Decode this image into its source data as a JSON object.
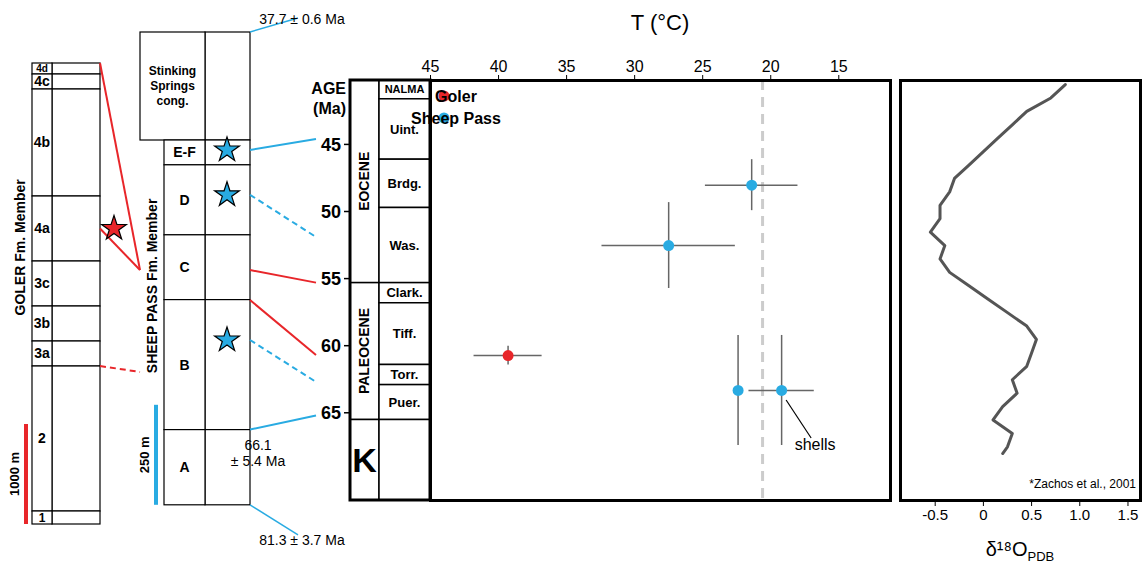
{
  "chart_data": [
    {
      "type": "scatter",
      "x_label": "T (°C)",
      "y_label": "AGE (Ma)",
      "xlim": [
        45,
        11.2
      ],
      "xticks": [
        45,
        40,
        35,
        30,
        25,
        20,
        15
      ],
      "ylim": [
        40.2,
        71.5
      ],
      "yticks": [
        45,
        50,
        55,
        60,
        65
      ],
      "legend": "top-left",
      "series": [
        {
          "name": "Goler",
          "color": "#e8262a",
          "x": [
            39.3
          ],
          "values": [
            60.7
          ],
          "x_err": [
            2.5
          ],
          "y_err": [
            0.7
          ]
        },
        {
          "name": "Sheep Pass",
          "color": "#29abe2",
          "x": [
            21.4,
            27.5,
            22.4,
            19.2
          ],
          "values": [
            48.0,
            52.5,
            63.3,
            63.3
          ],
          "x_err": [
            3.4,
            4.9,
            0,
            2.4
          ],
          "y_err": [
            1.9,
            3.2,
            4.1,
            4.1
          ]
        }
      ],
      "annotations": [
        {
          "text": "shells",
          "x": 19.2,
          "y": 63.3
        }
      ],
      "reference_lines": [
        {
          "x": 20.6,
          "color": "#cccccc",
          "line_style": "dashed"
        }
      ],
      "epochs": [
        {
          "label": "EOCENE",
          "from": 40.2,
          "to": 55.3
        },
        {
          "label": "PALEOCENE",
          "from": 55.3,
          "to": 65.5
        },
        {
          "label": "K",
          "from": 65.5,
          "to": 71.5
        }
      ],
      "nalma_header": "NALMA",
      "nalma": [
        {
          "label": "Uint.",
          "from": 41.6,
          "to": 46.1
        },
        {
          "label": "Brdg.",
          "from": 46.1,
          "to": 49.7
        },
        {
          "label": "Was.",
          "from": 49.7,
          "to": 55.3
        },
        {
          "label": "Clark.",
          "from": 55.3,
          "to": 56.8
        },
        {
          "label": "Tiff.",
          "from": 56.8,
          "to": 61.4
        },
        {
          "label": "Torr.",
          "from": 61.4,
          "to": 62.9
        },
        {
          "label": "Puer.",
          "from": 62.9,
          "to": 65.5
        }
      ]
    },
    {
      "type": "line",
      "x_label": "δ¹⁸O",
      "x_label_subscript": "PDB",
      "source": "*Zachos et al., 2001",
      "color": "#555555",
      "xlim": [
        -0.86,
        1.63
      ],
      "xticks": [
        -0.5,
        0,
        0.5,
        {
          "value": 1,
          "label": "1.0"
        },
        1.5
      ],
      "ylim": [
        40.2,
        71.5
      ],
      "x": [
        0.85,
        0.7,
        0.45,
        0.3,
        0.15,
        0.0,
        -0.15,
        -0.3,
        -0.35,
        -0.45,
        -0.45,
        -0.55,
        -0.4,
        -0.45,
        -0.35,
        -0.15,
        0.05,
        0.25,
        0.45,
        0.55,
        0.5,
        0.45,
        0.3,
        0.35,
        0.2,
        0.1,
        0.3,
        0.25,
        0.2
      ],
      "y": [
        40.5,
        41.5,
        42.5,
        43.5,
        44.5,
        45.5,
        46.5,
        47.5,
        48.5,
        49.5,
        50.5,
        51.5,
        52.5,
        53.5,
        54.5,
        55.5,
        56.5,
        57.5,
        58.5,
        59.5,
        60.5,
        61.5,
        62.5,
        63.5,
        64.5,
        65.5,
        66.5,
        67.5,
        68.0
      ]
    }
  ],
  "stratigraphy": {
    "columns": [
      {
        "name": "Goler",
        "title": "GOLER Fm. Member",
        "color": "#e8262a",
        "scale_bar": {
          "value": 1000,
          "label": "1000 m"
        },
        "units": [
          {
            "label": "4d",
            "thickness_m": 110
          },
          {
            "label": "4c",
            "thickness_m": 150
          },
          {
            "label": "4b",
            "thickness_m": 1070
          },
          {
            "label": "4a",
            "thickness_m": 650
          },
          {
            "label": "3c",
            "thickness_m": 450
          },
          {
            "label": "3b",
            "thickness_m": 350
          },
          {
            "label": "3a",
            "thickness_m": 250
          },
          {
            "label": "2",
            "thickness_m": 1450
          },
          {
            "label": "1",
            "thickness_m": 130
          }
        ]
      },
      {
        "name": "Sheep Pass",
        "title": "SHEEP PASS Fm. Member",
        "color": "#29abe2",
        "scale_bar": {
          "value": 250,
          "label": "250 m"
        },
        "overlying": {
          "label": "Stinking Springs cong.",
          "thickness_m": 270
        },
        "units": [
          {
            "label": "E-F",
            "thickness_m": 62
          },
          {
            "label": "D",
            "thickness_m": 175
          },
          {
            "label": "C",
            "thickness_m": 162
          },
          {
            "label": "B",
            "thickness_m": 325
          },
          {
            "label": "A",
            "thickness_m": 188
          }
        ]
      }
    ],
    "stars": [
      {
        "column": "Goler",
        "depth_m": 1655
      },
      {
        "column": "Sheep Pass",
        "depth_m": 295
      },
      {
        "column": "Sheep Pass",
        "depth_m": 407
      },
      {
        "column": "Sheep Pass",
        "depth_m": 770
      }
    ],
    "correlations": [
      {
        "from": {
          "column": "Goler",
          "depth_m": 0
        },
        "to": {
          "column": "Sheep Pass",
          "depth_m": 595
        },
        "color": "#e8262a",
        "line_style": "solid"
      },
      {
        "from": {
          "column": "Goler",
          "depth_m": 1655
        },
        "to": {
          "column": "Sheep Pass",
          "depth_m": 595
        },
        "color": "#e8262a",
        "line_style": "solid"
      },
      {
        "from": {
          "column": "Goler",
          "depth_m": 3030
        },
        "to": {
          "column": "Sheep Pass",
          "depth_m": 850
        },
        "color": "#e8262a",
        "line_style": "dashed"
      },
      {
        "from": {
          "column": "Sheep Pass",
          "depth_m": 595
        },
        "to": {
          "age": 55.3
        },
        "color": "#e8262a",
        "line_style": "solid"
      },
      {
        "from": {
          "column": "Sheep Pass",
          "depth_m": 670
        },
        "to": {
          "age": 60.7
        },
        "color": "#e8262a",
        "line_style": "solid"
      },
      {
        "from": {
          "column": "Sheep Pass",
          "depth_m": 295
        },
        "to": {
          "age": 44.6
        },
        "color": "#29abe2",
        "line_style": "solid"
      },
      {
        "from": {
          "column": "Sheep Pass",
          "depth_m": 407
        },
        "to": {
          "age": 51.9
        },
        "color": "#29abe2",
        "line_style": "dashed"
      },
      {
        "from": {
          "column": "Sheep Pass",
          "depth_m": 770
        },
        "to": {
          "age": 62.7
        },
        "color": "#29abe2",
        "line_style": "dashed"
      },
      {
        "from": {
          "column": "Sheep Pass",
          "depth_m": 994
        },
        "to": {
          "age": 65.2
        },
        "color": "#29abe2",
        "line_style": "solid"
      }
    ],
    "age_labels": [
      {
        "label": "37.7 ± 0.6 Ma",
        "column": "Sheep Pass",
        "depth_m": 0,
        "color": "#29abe2"
      },
      {
        "label": "66.1 ± 5.4 Ma",
        "column": "Sheep Pass",
        "depth_m": 994,
        "color": "#29abe2"
      },
      {
        "label": "81.3 ± 3.7 Ma",
        "column": "Sheep Pass",
        "depth_m": 1182,
        "color": "#29abe2"
      }
    ]
  }
}
